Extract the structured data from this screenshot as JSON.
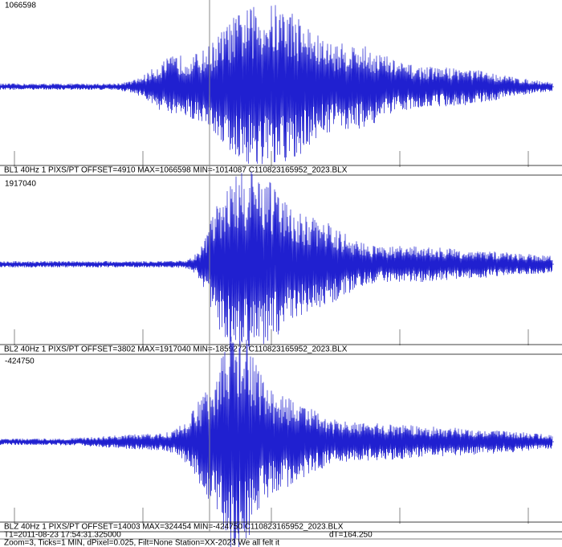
{
  "channels": [
    {
      "peak_label": "1066598",
      "info": "BL1 40Hz 1 PIXS/PT OFFSET=4910 MAX=1066598 MIN=-1014087 C110823165952_2023.BLX"
    },
    {
      "peak_label": "1917040",
      "info": "BL2 40Hz 1 PIXS/PT OFFSET=3802 MAX=1917040 MIN=-1859272 C110823165952_2023.BLX"
    },
    {
      "peak_label": "-424750",
      "info": "BLZ 40Hz 1 PIXS/PT OFFSET=14003 MAX=324454 MIN=-424750 C110823165952_2023.BLX"
    }
  ],
  "status": {
    "t1": "T1=2011-08-23 17:54:31.325000",
    "dt": "dT=164.250",
    "settings": "Zoom=3, Ticks=1 MIN, dPixel=0.025, Filt=None Station=XX-2023     We all felt it"
  }
}
